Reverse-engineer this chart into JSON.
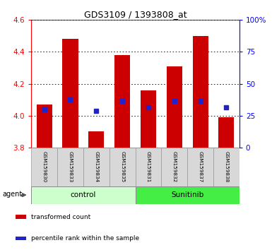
{
  "title": "GDS3109 / 1393808_at",
  "samples": [
    "GSM159830",
    "GSM159833",
    "GSM159834",
    "GSM159835",
    "GSM159831",
    "GSM159832",
    "GSM159837",
    "GSM159838"
  ],
  "bar_values": [
    4.07,
    4.48,
    3.9,
    4.38,
    4.16,
    4.31,
    4.5,
    3.99
  ],
  "blue_marker_values": [
    4.04,
    4.1,
    4.03,
    4.09,
    4.05,
    4.09,
    4.09,
    4.05
  ],
  "bar_bottom": 3.8,
  "ylim_left": [
    3.8,
    4.6
  ],
  "ylim_right": [
    0,
    100
  ],
  "yticks_left": [
    3.8,
    4.0,
    4.2,
    4.4,
    4.6
  ],
  "yticks_right": [
    0,
    25,
    50,
    75,
    100
  ],
  "ytick_labels_right": [
    "0",
    "25",
    "50",
    "75",
    "100%"
  ],
  "bar_color": "#cc0000",
  "marker_color": "#2222cc",
  "group_labels": [
    "control",
    "Sunitinib"
  ],
  "group_colors": [
    "#ccffcc",
    "#44ee44"
  ],
  "group_splits": [
    4
  ],
  "agent_label": "agent",
  "legend_items": [
    {
      "label": "transformed count",
      "color": "#cc0000"
    },
    {
      "label": "percentile rank within the sample",
      "color": "#2222cc"
    }
  ],
  "bar_width": 0.6,
  "tick_label_color_left": "red",
  "tick_label_color_right": "blue"
}
